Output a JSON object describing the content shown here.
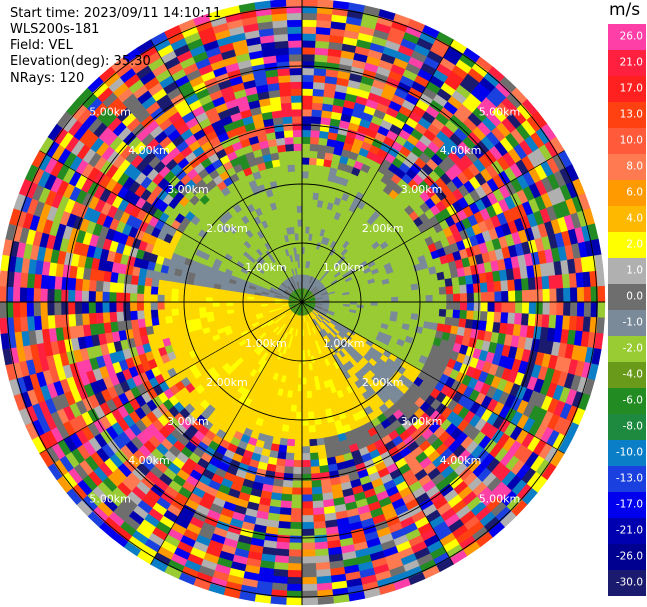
{
  "header": {
    "start_time": "Start time: 2023/09/11 14:10:11",
    "instrument": "WLS200s-181",
    "field": "Field: VEL",
    "elevation": "Elevation(deg): 35.30",
    "nrays": "NRays: 120"
  },
  "colorbar": {
    "unit": "m/s",
    "labels": [
      "26.0",
      "21.0",
      "17.0",
      "13.0",
      "10.0",
      "8.0",
      "6.0",
      "4.0",
      "2.0",
      "1.0",
      "0.0",
      "-1.0",
      "-2.0",
      "-4.0",
      "-6.0",
      "-8.0",
      "-10.0",
      "-13.0",
      "-17.0",
      "-21.0",
      "-26.0",
      "-30.0"
    ],
    "colors": [
      "#ff3fa8",
      "#ff2040",
      "#ff2020",
      "#ff4010",
      "#ff5a3a",
      "#ff7a50",
      "#ff9a00",
      "#ffb800",
      "#ffff00",
      "#b0b0b0",
      "#6e6e6e",
      "#7a8a99",
      "#99cc33",
      "#6a9a1a",
      "#228b22",
      "#1e8a40",
      "#0a7fc8",
      "#1a40e0",
      "#0000ee",
      "#0000b0",
      "#000090",
      "#1a1a6e"
    ]
  },
  "chart_data": {
    "type": "ppi",
    "field": "VEL",
    "nrays": 120,
    "range_rings_km": [
      1,
      2,
      3,
      4,
      5
    ],
    "ring_labels": [
      "1.00km",
      "2.00km",
      "3.00km",
      "4.00km",
      "5.00km"
    ],
    "description_bins": [
      {
        "range_km": [
          0.0,
          0.5
        ],
        "value": "near-zero / green mix"
      },
      {
        "range_km": [
          0.5,
          2.5
        ],
        "value": "yellow (2-4 m/s) south-west, olive green (-2 m/s) north, grey (0) elsewhere"
      },
      {
        "range_km": [
          2.5,
          5.2
        ],
        "value": "noise (all colors)"
      }
    ],
    "grid": true
  }
}
